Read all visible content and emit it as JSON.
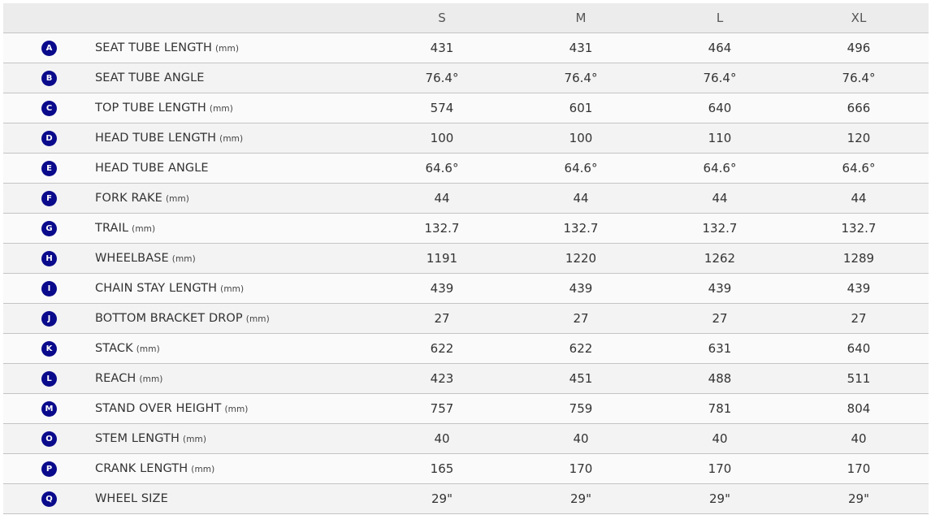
{
  "colors": {
    "badge": "#0a0a8c",
    "header_bg": "#ececec"
  },
  "sizes": [
    "S",
    "M",
    "L",
    "XL"
  ],
  "rows": [
    {
      "badge": "A",
      "label": "SEAT TUBE LENGTH",
      "unit": "(mm)",
      "values": [
        "431",
        "431",
        "464",
        "496"
      ]
    },
    {
      "badge": "B",
      "label": "SEAT TUBE ANGLE",
      "unit": "",
      "values": [
        "76.4°",
        "76.4°",
        "76.4°",
        "76.4°"
      ]
    },
    {
      "badge": "C",
      "label": "TOP TUBE LENGTH",
      "unit": "(mm)",
      "values": [
        "574",
        "601",
        "640",
        "666"
      ]
    },
    {
      "badge": "D",
      "label": "HEAD TUBE LENGTH",
      "unit": "(mm)",
      "values": [
        "100",
        "100",
        "110",
        "120"
      ]
    },
    {
      "badge": "E",
      "label": "HEAD TUBE ANGLE",
      "unit": "",
      "values": [
        "64.6°",
        "64.6°",
        "64.6°",
        "64.6°"
      ]
    },
    {
      "badge": "F",
      "label": "FORK RAKE",
      "unit": "(mm)",
      "values": [
        "44",
        "44",
        "44",
        "44"
      ]
    },
    {
      "badge": "G",
      "label": "TRAIL",
      "unit": "(mm)",
      "values": [
        "132.7",
        "132.7",
        "132.7",
        "132.7"
      ]
    },
    {
      "badge": "H",
      "label": "WHEELBASE",
      "unit": "(mm)",
      "values": [
        "1191",
        "1220",
        "1262",
        "1289"
      ]
    },
    {
      "badge": "I",
      "label": "CHAIN STAY LENGTH",
      "unit": "(mm)",
      "values": [
        "439",
        "439",
        "439",
        "439"
      ]
    },
    {
      "badge": "J",
      "label": "BOTTOM BRACKET DROP",
      "unit": "(mm)",
      "values": [
        "27",
        "27",
        "27",
        "27"
      ]
    },
    {
      "badge": "K",
      "label": "STACK",
      "unit": "(mm)",
      "values": [
        "622",
        "622",
        "631",
        "640"
      ]
    },
    {
      "badge": "L",
      "label": "REACH",
      "unit": "(mm)",
      "values": [
        "423",
        "451",
        "488",
        "511"
      ]
    },
    {
      "badge": "M",
      "label": "STAND OVER HEIGHT",
      "unit": "(mm)",
      "values": [
        "757",
        "759",
        "781",
        "804"
      ]
    },
    {
      "badge": "O",
      "label": "STEM LENGTH",
      "unit": "(mm)",
      "values": [
        "40",
        "40",
        "40",
        "40"
      ]
    },
    {
      "badge": "P",
      "label": "CRANK LENGTH",
      "unit": "(mm)",
      "values": [
        "165",
        "170",
        "170",
        "170"
      ]
    },
    {
      "badge": "Q",
      "label": "WHEEL SIZE",
      "unit": "",
      "values": [
        "29\"",
        "29\"",
        "29\"",
        "29\""
      ]
    }
  ]
}
